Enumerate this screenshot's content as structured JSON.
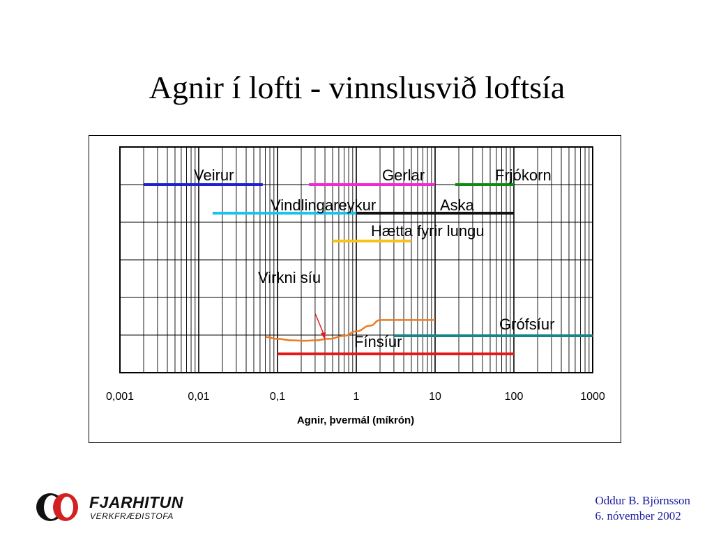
{
  "slide": {
    "title": "Agnir í lofti - vinnslusvið loftsía"
  },
  "logo": {
    "name": "FJARHITUN",
    "subtitle": "VERKFRÆÐISTOFA"
  },
  "footer": {
    "author": "Oddur B. Björnsson",
    "date": "6. nóvember 2002"
  },
  "chart_data": {
    "type": "line",
    "xlabel": "Agnir, þvermál (míkrón)",
    "x_scale": "log",
    "xlim": [
      0.001,
      1000
    ],
    "x_tick_labels": [
      "0,001",
      "0,01",
      "0,1",
      "1",
      "10",
      "100",
      "1000"
    ],
    "grid": true,
    "ranges": [
      {
        "label": "Veirur",
        "from": 0.002,
        "to": 0.065,
        "color": "#1f22c8"
      },
      {
        "label": "Gerlar",
        "from": 0.25,
        "to": 10,
        "color": "#ee2bd0"
      },
      {
        "label": "Frjókorn",
        "from": 18,
        "to": 100,
        "color": "#128a12"
      },
      {
        "label": "Vindlingareykur",
        "from": 0.015,
        "to": 1,
        "color": "#19c4ec"
      },
      {
        "label": "Aska",
        "from": 1,
        "to": 100,
        "color": "#101010"
      },
      {
        "label": "Hætta fyrir lungu",
        "from": 0.5,
        "to": 5,
        "color": "#f7c31a"
      },
      {
        "label": "Grófsíur",
        "from": 3,
        "to": 1000,
        "color": "#178585"
      },
      {
        "label": "Fínsíur",
        "from": 0.1,
        "to": 100,
        "color": "#e41a1a"
      }
    ],
    "efficiency_curve": {
      "label": "Virkni síu",
      "color": "#ee7a22",
      "x": [
        0.07,
        0.1,
        0.15,
        0.22,
        0.3,
        0.45,
        0.7,
        1.0,
        1.5,
        2.0,
        3.0,
        5.0,
        10.0
      ],
      "y": [
        0.95,
        0.9,
        0.86,
        0.85,
        0.86,
        0.9,
        0.98,
        1.1,
        1.25,
        1.4,
        1.4,
        1.4,
        1.4
      ]
    },
    "annotation_arrow": {
      "from_label": "Virkni síu",
      "to_curve_x": 0.4,
      "color": "#e41a1a"
    }
  }
}
